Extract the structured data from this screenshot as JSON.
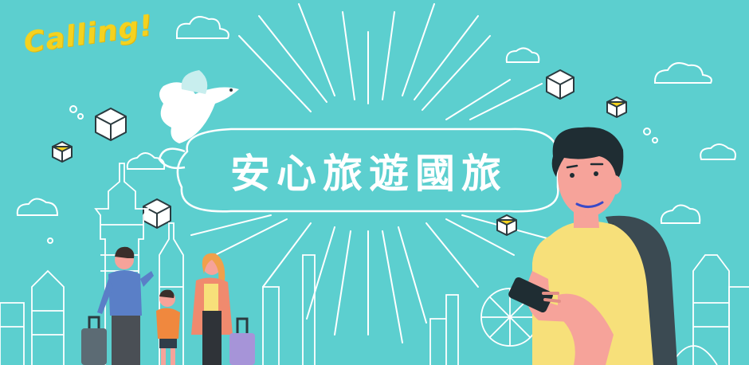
{
  "banner": {
    "logo_text": "Calling!",
    "title": "安心旅遊國旅"
  },
  "colors": {
    "background": "#5ccfcf",
    "logo": "#f4d21f",
    "line_art": "#ffffff",
    "shirt_yellow": "#f7e07a",
    "backpack": "#3b4a52",
    "suitcase_purple": "#a694d8"
  },
  "icons": [
    "dove-icon",
    "cube-icon",
    "cloud-icon",
    "smartphone-icon",
    "suitcase-icon",
    "backpack-icon"
  ]
}
